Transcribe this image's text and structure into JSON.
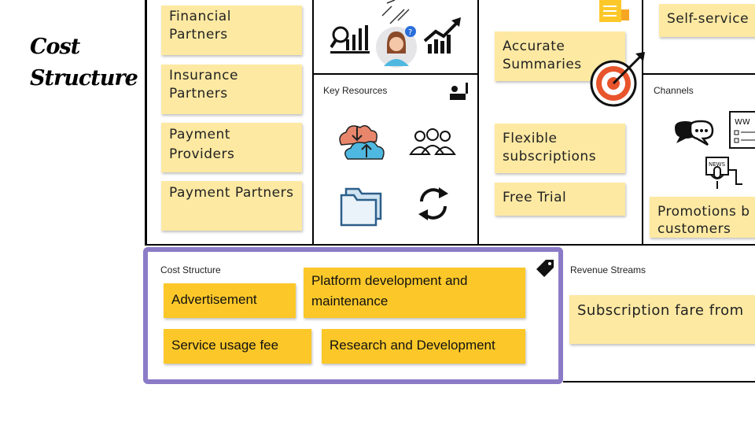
{
  "heading": {
    "line1": "Cost",
    "line2": "Structure"
  },
  "key_partners": [
    "Financial Partners",
    "Insurance Partners",
    "Payment Providers",
    "Payment Partners"
  ],
  "key_resources": {
    "title": "Key Resources"
  },
  "value_propositions": [
    "Accurate Summaries",
    "Flexible subscriptions",
    "Free Trial"
  ],
  "customer_relationships": {
    "item": "Self-service"
  },
  "channels": {
    "title": "Channels",
    "item": "Promotions b customers",
    "item_line1": "Promotions b",
    "item_line2": "customers"
  },
  "cost_structure": {
    "title": "Cost Structure",
    "items": [
      "Advertisement",
      "Platform development and maintenance",
      "Service usage fee",
      "Research and Development"
    ]
  },
  "revenue_streams": {
    "title": "Revenue Streams",
    "item": "Subscription fare from"
  },
  "colors": {
    "sticky_light": "#fde9a2",
    "sticky_dark": "#fcc829",
    "highlight_border": "#8b7bc7"
  }
}
